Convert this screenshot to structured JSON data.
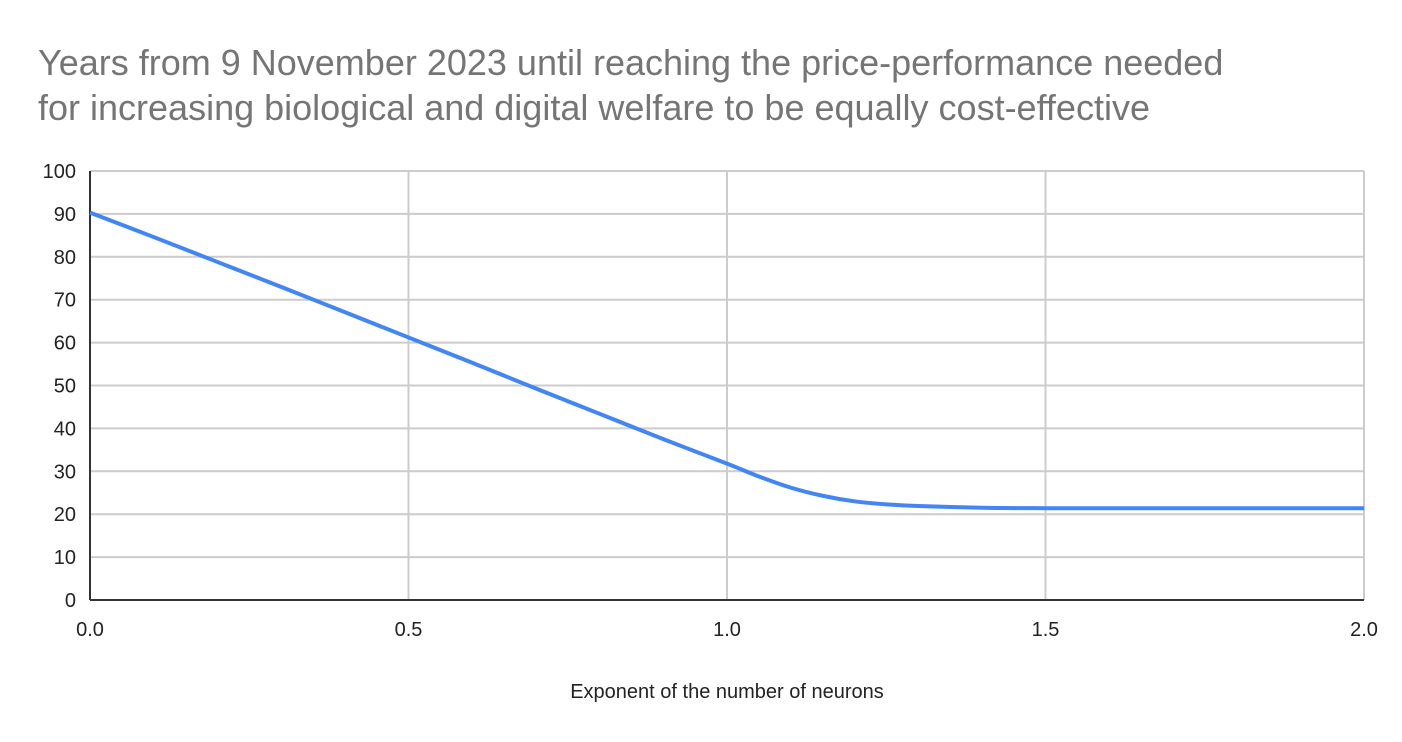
{
  "chart_data": {
    "type": "line",
    "title_lines": [
      "Years from 9 November 2023 until reaching the price-performance needed",
      "for increasing biological and digital welfare to be equally cost-effective"
    ],
    "xlabel": "Exponent of the number of neurons",
    "ylabel": "",
    "xlim": [
      0,
      2
    ],
    "ylim": [
      0,
      100
    ],
    "xticks": [
      "0.0",
      "0.5",
      "1.0",
      "1.5",
      "2.0"
    ],
    "xtick_values": [
      0,
      0.5,
      1,
      1.5,
      2
    ],
    "yticks": [
      "0",
      "10",
      "20",
      "30",
      "40",
      "50",
      "60",
      "70",
      "80",
      "90",
      "100"
    ],
    "ytick_values": [
      0,
      10,
      20,
      30,
      40,
      50,
      60,
      70,
      80,
      90,
      100
    ],
    "grid": true,
    "color": "#4285f4",
    "series": [
      {
        "x": [
          0,
          0.1,
          0.2,
          0.3,
          0.4,
          0.5,
          0.6,
          0.7,
          0.8,
          0.9,
          1.0,
          1.05,
          1.1,
          1.15,
          1.2,
          1.25,
          1.3,
          1.4,
          1.5,
          1.6,
          1.7,
          1.8,
          1.9,
          2.0
        ],
        "y": [
          90.3,
          84.6,
          78.8,
          73.0,
          67.1,
          61.2,
          55.3,
          49.3,
          43.4,
          37.5,
          31.8,
          28.8,
          26.2,
          24.3,
          23.0,
          22.3,
          21.9,
          21.5,
          21.4,
          21.4,
          21.4,
          21.4,
          21.4,
          21.4
        ]
      }
    ]
  }
}
